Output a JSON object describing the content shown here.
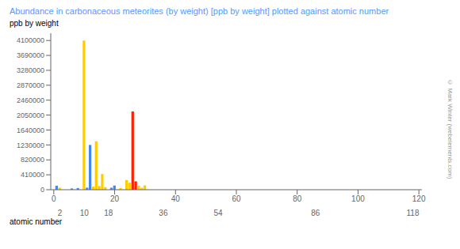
{
  "chart_data": {
    "type": "bar",
    "title": "Abundance in carbonaceous meteorites (by weight) [ppb by weight] plotted against atomic number",
    "ylabel": "ppb by weight",
    "xlabel": "atomic number",
    "annotations": [
      "© Mark Winter (webelements.com)"
    ],
    "x": [
      1,
      2,
      6,
      7,
      8,
      9,
      10,
      11,
      12,
      13,
      14,
      15,
      16,
      17,
      18,
      19,
      20,
      21,
      22,
      23,
      24,
      25,
      26,
      27,
      28,
      29,
      30,
      31,
      32,
      33,
      34,
      35,
      36,
      37,
      38,
      39,
      40,
      41,
      42,
      44,
      45,
      46,
      47,
      48,
      49,
      50,
      51,
      52,
      53,
      54,
      55,
      56,
      57,
      58,
      59,
      60,
      62,
      63,
      64,
      65,
      66,
      67,
      68,
      69,
      70,
      71,
      72,
      73,
      74,
      75,
      76,
      77,
      78,
      79,
      80,
      81,
      82,
      83,
      90,
      92
    ],
    "values": [
      110000,
      56000,
      35000,
      3300,
      46000,
      540,
      4100000,
      55000,
      1230000,
      85000,
      1330000,
      102000,
      430000,
      70000,
      940,
      54000,
      115000,
      5900,
      44000,
      5400,
      266000,
      193000,
      2150000,
      230000,
      110000,
      54000,
      120000,
      3700,
      3200,
      1800,
      2100,
      350,
      870,
      230,
      780,
      156,
      390,
      24,
      93,
      71,
      14,
      56,
      20,
      68,
      8,
      172,
      14,
      232,
      43,
      173,
      19,
      234,
      23,
      62,
      9,
      45,
      15,
      6,
      20,
      4,
      13,
      3,
      8,
      1,
      8,
      1,
      15,
      2,
      9,
      4,
      49,
      46,
      101,
      15,
      31,
      14,
      247,
      11,
      3,
      1
    ],
    "colors": [
      "#4488ee",
      "#ffcc00",
      "#4488ee",
      "#4488ee",
      "#4488ee",
      "#ffcc00",
      "#ffcc00",
      "#4488ee",
      "#4488ee",
      "#ffcc00",
      "#ffcc00",
      "#ffcc00",
      "#ffcc00",
      "#ffcc00",
      "#ffcc00",
      "#4488ee",
      "#4488ee",
      "#ffcc00",
      "#ffcc00",
      "#ffcc00",
      "#ffcc00",
      "#ffcc00",
      "#ff2200",
      "#ff2200",
      "#ffcc00",
      "#ffcc00",
      "#ffcc00",
      "#ffcc00",
      "#ffcc00",
      "#ffcc00",
      "#ffcc00",
      "#ffcc00",
      "#ffcc00",
      "#4488ee",
      "#4488ee",
      "#ffcc00",
      "#ffcc00",
      "#ffcc00",
      "#ffcc00",
      "#ffcc00",
      "#ffcc00",
      "#ffcc00",
      "#ffcc00",
      "#ffcc00",
      "#ffcc00",
      "#ffcc00",
      "#ffcc00",
      "#ffcc00",
      "#ffcc00",
      "#ffcc00",
      "#4488ee",
      "#4488ee",
      "#ffcc00",
      "#ffcc00",
      "#ffcc00",
      "#ffcc00",
      "#ffcc00",
      "#ffcc00",
      "#ffcc00",
      "#ffcc00",
      "#ffcc00",
      "#ffcc00",
      "#ffcc00",
      "#ffcc00",
      "#ffcc00",
      "#ffcc00",
      "#ffcc00",
      "#ffcc00",
      "#ffcc00",
      "#ffcc00",
      "#ffcc00",
      "#ffcc00",
      "#ffcc00",
      "#ffcc00",
      "#ffcc00",
      "#ffcc00",
      "#ffcc00",
      "#ffcc00",
      "#ffcc00",
      "#ffcc00"
    ],
    "xlim": [
      -1,
      121
    ],
    "xticks": [
      0,
      20,
      40,
      60,
      80,
      100,
      120
    ],
    "x2lim": [
      -1,
      121
    ],
    "x2ticks": [
      2,
      10,
      18,
      36,
      54,
      86,
      118
    ],
    "ylim": [
      0,
      4300000
    ],
    "yticks": [
      0,
      410000,
      820000,
      1230000,
      1640000,
      2050000,
      2460000,
      2870000,
      3280000,
      3690000,
      4100000
    ],
    "grid": false,
    "title_color": "#5599ff"
  }
}
